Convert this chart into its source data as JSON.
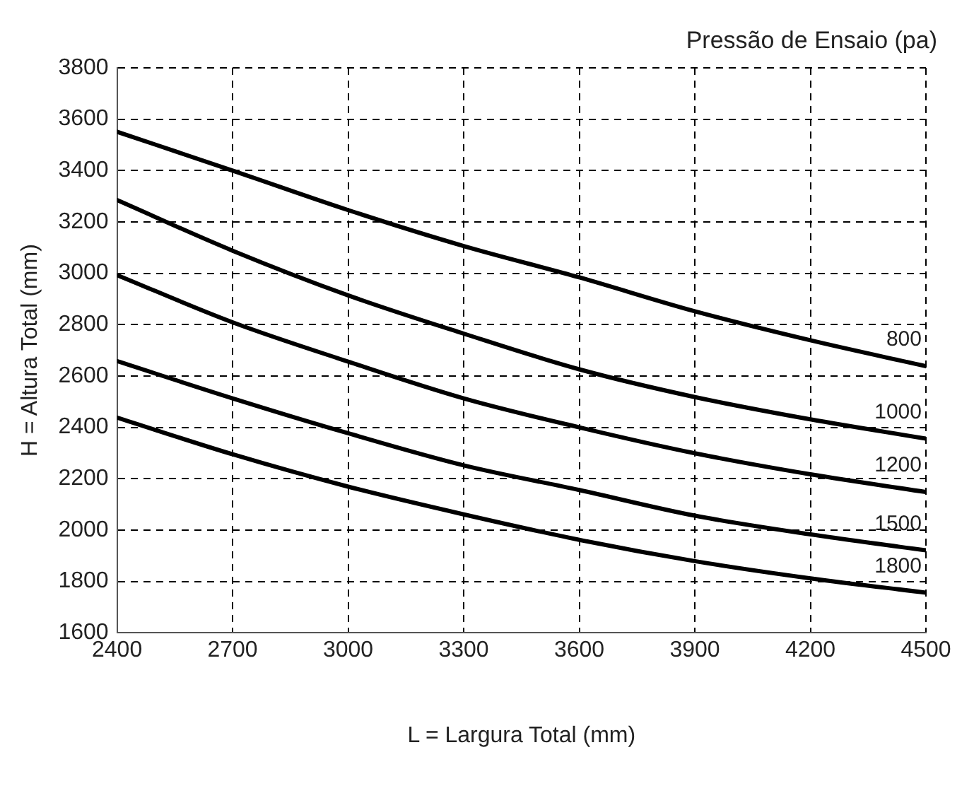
{
  "chart_data": {
    "type": "line",
    "legend_title": "Pressão de Ensaio (pa)",
    "xlabel": "L = Largura Total (mm)",
    "ylabel": "H = Altura Total (mm)",
    "x": [
      2400,
      2700,
      3000,
      3300,
      3600,
      3900,
      4200,
      4500
    ],
    "series": [
      {
        "name": "800",
        "color": "#000000",
        "values": [
          3551,
          3400,
          3246,
          3106,
          2984,
          2852,
          2739,
          2638
        ]
      },
      {
        "name": "1000",
        "color": "#000000",
        "values": [
          3285,
          3088,
          2914,
          2765,
          2626,
          2518,
          2431,
          2356
        ]
      },
      {
        "name": "1200",
        "color": "#000000",
        "values": [
          2993,
          2809,
          2656,
          2513,
          2400,
          2299,
          2217,
          2148
        ]
      },
      {
        "name": "1500",
        "color": "#000000",
        "values": [
          2658,
          2513,
          2377,
          2252,
          2156,
          2056,
          1983,
          1921
        ]
      },
      {
        "name": "1800",
        "color": "#000000",
        "values": [
          2438,
          2295,
          2169,
          2061,
          1962,
          1879,
          1812,
          1756
        ]
      }
    ],
    "xlim": [
      2400,
      4500
    ],
    "xticks": [
      2400,
      2700,
      3000,
      3300,
      3600,
      3900,
      4200,
      4500
    ],
    "ylim": [
      1600,
      3800
    ],
    "yticks": [
      1600,
      1800,
      2000,
      2200,
      2400,
      2600,
      2800,
      3000,
      3200,
      3400,
      3600,
      3800
    ],
    "grid": true,
    "legend": false,
    "marker": "none",
    "line_style": "solid"
  }
}
